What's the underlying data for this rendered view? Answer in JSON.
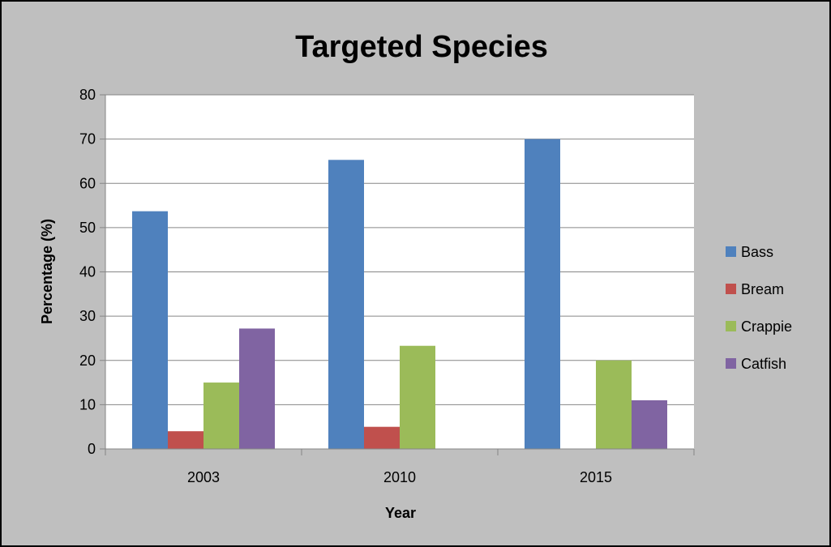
{
  "chart_data": {
    "type": "bar",
    "title": "Targeted Species",
    "xlabel": "Year",
    "ylabel": "Percentage (%)",
    "categories": [
      "2003",
      "2010",
      "2015"
    ],
    "series": [
      {
        "name": "Bass",
        "color": "#4f81bd",
        "values": [
          53.7,
          65.3,
          70
        ]
      },
      {
        "name": "Bream",
        "color": "#c0504d",
        "values": [
          4,
          5,
          0
        ]
      },
      {
        "name": "Crappie",
        "color": "#9bbb59",
        "values": [
          15,
          23.3,
          20
        ]
      },
      {
        "name": "Catfish",
        "color": "#8064a2",
        "values": [
          27.2,
          0,
          11
        ]
      }
    ],
    "ylim": [
      0,
      80
    ],
    "yticks": [
      0,
      10,
      20,
      30,
      40,
      50,
      60,
      70,
      80
    ],
    "grid": true,
    "legend": "right"
  }
}
